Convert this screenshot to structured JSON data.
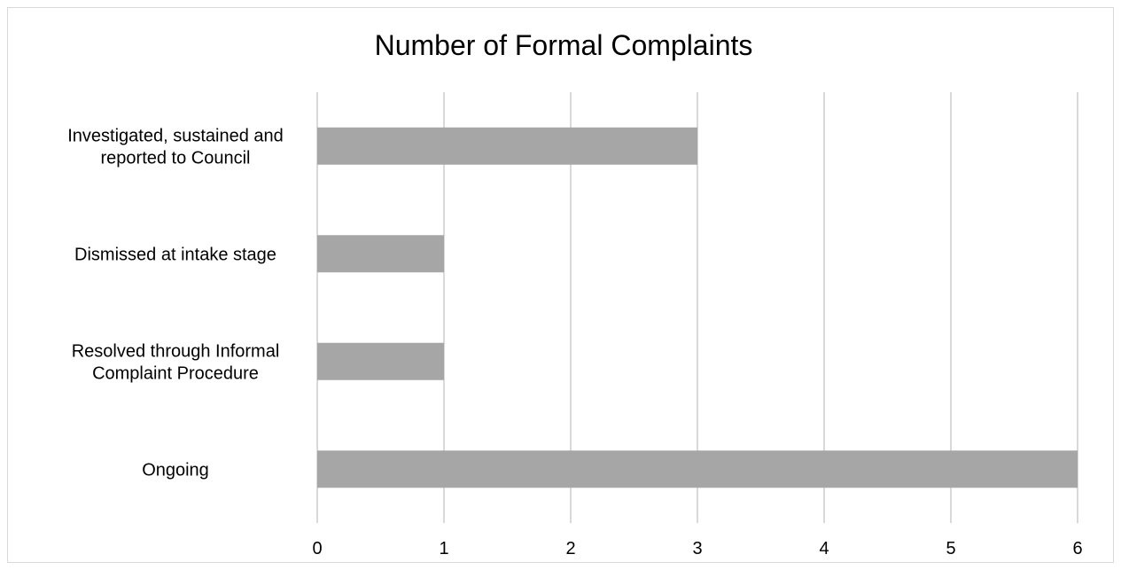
{
  "chart_data": {
    "type": "bar",
    "orientation": "horizontal",
    "title": "Number of Formal Complaints",
    "categories": [
      [
        "Investigated, sustained and",
        "reported to Council"
      ],
      [
        "Dismissed at intake stage"
      ],
      [
        "Resolved through Informal",
        "Complaint Procedure"
      ],
      [
        "Ongoing"
      ]
    ],
    "values": [
      3,
      1,
      1,
      6
    ],
    "xlim": [
      0,
      6
    ],
    "xticks": [
      "0",
      "1",
      "2",
      "3",
      "4",
      "5",
      "6"
    ],
    "grid": true,
    "legend": "none",
    "bar_color": "#a6a6a6",
    "grid_color": "#d9d9d9"
  }
}
